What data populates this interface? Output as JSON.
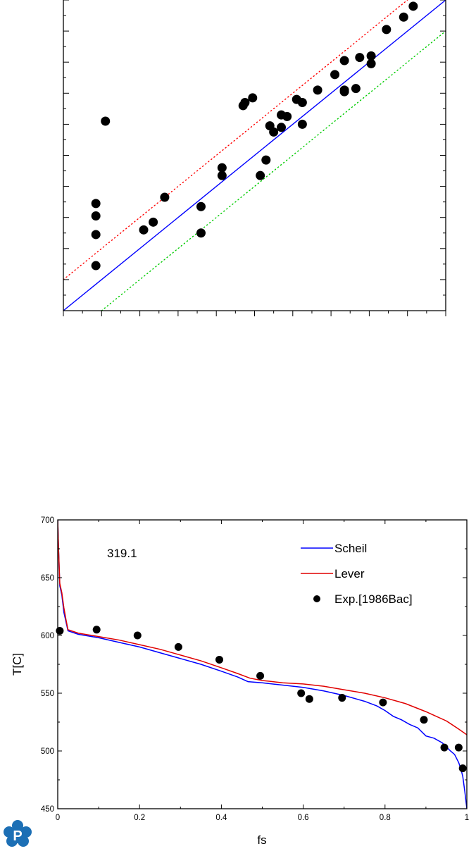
{
  "chart_data": [
    {
      "type": "scatter",
      "title": "",
      "xlabel": "",
      "ylabel": "",
      "xlim": [
        0,
        1
      ],
      "ylim": [
        0,
        1
      ],
      "tick_labels_shown": false,
      "points": [
        [
          0.085,
          0.345
        ],
        [
          0.085,
          0.305
        ],
        [
          0.085,
          0.245
        ],
        [
          0.085,
          0.145
        ],
        [
          0.11,
          0.61
        ],
        [
          0.21,
          0.26
        ],
        [
          0.235,
          0.285
        ],
        [
          0.265,
          0.365
        ],
        [
          0.36,
          0.335
        ],
        [
          0.36,
          0.25
        ],
        [
          0.415,
          0.46
        ],
        [
          0.415,
          0.435
        ],
        [
          0.47,
          0.66
        ],
        [
          0.475,
          0.67
        ],
        [
          0.495,
          0.685
        ],
        [
          0.515,
          0.435
        ],
        [
          0.53,
          0.485
        ],
        [
          0.54,
          0.595
        ],
        [
          0.55,
          0.575
        ],
        [
          0.57,
          0.59
        ],
        [
          0.57,
          0.63
        ],
        [
          0.585,
          0.625
        ],
        [
          0.61,
          0.68
        ],
        [
          0.625,
          0.6
        ],
        [
          0.625,
          0.67
        ],
        [
          0.665,
          0.71
        ],
        [
          0.71,
          0.76
        ],
        [
          0.735,
          0.805
        ],
        [
          0.735,
          0.71
        ],
        [
          0.735,
          0.705
        ],
        [
          0.765,
          0.715
        ],
        [
          0.775,
          0.815
        ],
        [
          0.805,
          0.795
        ],
        [
          0.805,
          0.82
        ],
        [
          0.845,
          0.905
        ],
        [
          0.89,
          0.945
        ],
        [
          0.915,
          0.98
        ]
      ],
      "lines": [
        {
          "name": "",
          "style": "solid",
          "color": "#0000ff",
          "points": [
            [
              0,
              0
            ],
            [
              1,
              1
            ]
          ]
        },
        {
          "name": "",
          "style": "dotted",
          "color": "#ff0000",
          "points": [
            [
              0,
              0.1
            ],
            [
              0.9,
              1
            ]
          ]
        },
        {
          "name": "",
          "style": "dotted",
          "color": "#00cc00",
          "points": [
            [
              0.1,
              0
            ],
            [
              1,
              0.9
            ]
          ]
        }
      ]
    },
    {
      "type": "line",
      "title": "",
      "annotation": "319.1",
      "xlabel": "fs",
      "ylabel": "T[C]",
      "xlim": [
        0,
        1
      ],
      "ylim": [
        450,
        700
      ],
      "xticks": [
        "0",
        "0.2",
        "0.4",
        "0.6",
        "0.8",
        "1"
      ],
      "yticks": [
        "450",
        "500",
        "550",
        "600",
        "650",
        "700"
      ],
      "legend_position": "top-right",
      "series": [
        {
          "name": "Scheil",
          "color": "#0000ff",
          "type": "line",
          "x": [
            0,
            0.002,
            0.005,
            0.01,
            0.015,
            0.02,
            0.025,
            0.05,
            0.1,
            0.15,
            0.2,
            0.25,
            0.3,
            0.35,
            0.4,
            0.44,
            0.465,
            0.5,
            0.55,
            0.6,
            0.65,
            0.7,
            0.75,
            0.78,
            0.8,
            0.82,
            0.84,
            0.86,
            0.88,
            0.9,
            0.92,
            0.94,
            0.96,
            0.97,
            0.98,
            0.985,
            0.99,
            0.995,
            1.0
          ],
          "y": [
            700,
            675,
            643,
            635,
            620,
            612,
            604,
            601,
            598,
            594,
            590,
            585,
            580,
            575,
            569,
            564,
            560,
            559,
            557,
            555,
            552,
            548,
            543,
            539,
            535,
            530,
            527,
            523,
            520,
            513,
            511,
            507,
            500,
            497,
            490,
            485,
            478,
            465,
            450
          ]
        },
        {
          "name": "Lever",
          "color": "#e00000",
          "type": "line",
          "x": [
            0,
            0.002,
            0.005,
            0.01,
            0.015,
            0.02,
            0.025,
            0.05,
            0.1,
            0.15,
            0.2,
            0.25,
            0.3,
            0.35,
            0.4,
            0.44,
            0.47,
            0.5,
            0.55,
            0.6,
            0.65,
            0.7,
            0.75,
            0.8,
            0.85,
            0.9,
            0.95,
            0.98,
            1.0
          ],
          "y": [
            700,
            675,
            645,
            637,
            624,
            614,
            605,
            602,
            599,
            596,
            592,
            588,
            583,
            578,
            572,
            567,
            563,
            561,
            559,
            558,
            556,
            553,
            550,
            546,
            541,
            534,
            526,
            519,
            514
          ]
        },
        {
          "name": "Exp.[1986Bac]",
          "color": "#000000",
          "type": "scatter",
          "x": [
            0.005,
            0.095,
            0.195,
            0.295,
            0.395,
            0.495,
            0.595,
            0.615,
            0.695,
            0.795,
            0.895,
            0.945,
            0.98,
            0.99
          ],
          "y": [
            604,
            605,
            600,
            590,
            579,
            565,
            550,
            545,
            546,
            542,
            527,
            503,
            503,
            485
          ]
        }
      ]
    }
  ]
}
